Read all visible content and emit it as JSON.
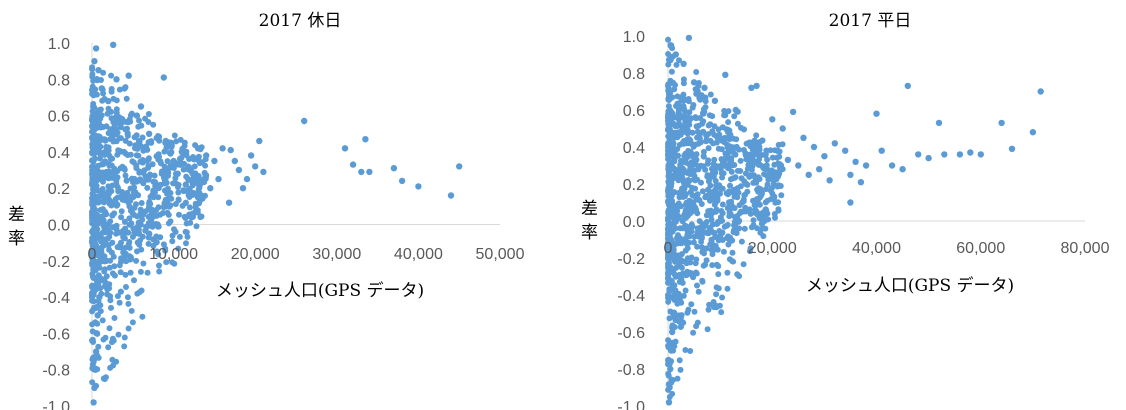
{
  "chart_data": [
    {
      "type": "scatter",
      "title": "2017 休日",
      "xlabel": "メッシュ人口(GPS データ)",
      "ylabel": "差率",
      "xlim": [
        0,
        50000
      ],
      "ylim": [
        -1.0,
        1.0
      ],
      "x_ticks": [
        "0",
        "10,000",
        "20,000",
        "30,000",
        "40,000",
        "50,000"
      ],
      "y_ticks": [
        "1.0",
        "0.8",
        "0.6",
        "0.4",
        "0.2",
        "0.0",
        "-0.2",
        "-0.4",
        "-0.6",
        "-0.8",
        "-1.0"
      ],
      "grid": false,
      "marker_color": "#5b9bd5",
      "points": [
        [
          200,
          -0.98
        ],
        [
          300,
          -0.9
        ],
        [
          400,
          -0.8
        ],
        [
          500,
          -0.7
        ],
        [
          600,
          -0.6
        ],
        [
          700,
          -0.5
        ],
        [
          900,
          -0.4
        ],
        [
          1100,
          -0.3
        ],
        [
          1300,
          -0.2
        ],
        [
          1600,
          -0.1
        ],
        [
          2000,
          0.0
        ],
        [
          2500,
          0.05
        ],
        [
          300,
          0.9
        ],
        [
          500,
          0.97
        ],
        [
          800,
          0.85
        ],
        [
          1200,
          0.75
        ],
        [
          2000,
          0.68
        ],
        [
          2600,
          0.99
        ],
        [
          3000,
          0.8
        ],
        [
          4000,
          0.75
        ],
        [
          4500,
          0.82
        ],
        [
          8800,
          0.81
        ],
        [
          6000,
          0.65
        ],
        [
          5500,
          0.6
        ],
        [
          3500,
          0.55
        ],
        [
          7000,
          0.5
        ],
        [
          9000,
          0.45
        ],
        [
          10000,
          0.35
        ],
        [
          11000,
          0.4
        ],
        [
          12000,
          0.3
        ],
        [
          13000,
          0.42
        ],
        [
          14000,
          0.38
        ],
        [
          15000,
          0.35
        ],
        [
          15500,
          0.25
        ],
        [
          16000,
          0.42
        ],
        [
          17000,
          0.41
        ],
        [
          17500,
          0.35
        ],
        [
          18000,
          0.3
        ],
        [
          19000,
          0.25
        ],
        [
          19500,
          0.38
        ],
        [
          20000,
          0.32
        ],
        [
          20500,
          0.46
        ],
        [
          21000,
          0.29
        ],
        [
          14500,
          0.2
        ],
        [
          13000,
          0.15
        ],
        [
          11500,
          0.22
        ],
        [
          16800,
          0.12
        ],
        [
          9000,
          0.1
        ],
        [
          8000,
          0.0
        ],
        [
          7000,
          -0.05
        ],
        [
          6000,
          0.05
        ],
        [
          10500,
          0.28
        ],
        [
          12500,
          0.36
        ],
        [
          18500,
          0.2
        ],
        [
          26000,
          0.57
        ],
        [
          31000,
          0.42
        ],
        [
          32000,
          0.33
        ],
        [
          33000,
          0.29
        ],
        [
          33500,
          0.47
        ],
        [
          34000,
          0.29
        ],
        [
          37000,
          0.31
        ],
        [
          38000,
          0.24
        ],
        [
          40000,
          0.21
        ],
        [
          44000,
          0.16
        ],
        [
          45000,
          0.32
        ]
      ]
    },
    {
      "type": "scatter",
      "title": "2017 平日",
      "xlabel": "メッシュ人口(GPS データ)",
      "ylabel": "差率",
      "xlim": [
        0,
        80000
      ],
      "ylim": [
        -1.0,
        1.0
      ],
      "x_ticks": [
        "0",
        "20,000",
        "40,000",
        "60,000",
        "80,000"
      ],
      "y_ticks": [
        "1.0",
        "0.8",
        "0.6",
        "0.4",
        "0.2",
        "0.0",
        "-0.2",
        "-0.4",
        "-0.6",
        "-0.8",
        "-1.0"
      ],
      "grid": false,
      "marker_color": "#5b9bd5",
      "points": [
        [
          200,
          -0.98
        ],
        [
          300,
          -0.9
        ],
        [
          450,
          -0.8
        ],
        [
          600,
          -0.7
        ],
        [
          800,
          -0.6
        ],
        [
          1000,
          -0.5
        ],
        [
          1200,
          -0.4
        ],
        [
          1500,
          -0.3
        ],
        [
          1800,
          -0.2
        ],
        [
          2200,
          -0.1
        ],
        [
          2800,
          0.0
        ],
        [
          3500,
          0.05
        ],
        [
          500,
          0.95
        ],
        [
          1500,
          0.9
        ],
        [
          4000,
          0.99
        ],
        [
          3000,
          0.85
        ],
        [
          5000,
          0.75
        ],
        [
          7000,
          0.72
        ],
        [
          11000,
          0.79
        ],
        [
          16000,
          0.72
        ],
        [
          17000,
          0.73
        ],
        [
          9000,
          0.65
        ],
        [
          13000,
          0.6
        ],
        [
          20000,
          0.55
        ],
        [
          24000,
          0.59
        ],
        [
          22000,
          0.5
        ],
        [
          26000,
          0.45
        ],
        [
          28000,
          0.4
        ],
        [
          30000,
          0.35
        ],
        [
          32000,
          0.42
        ],
        [
          34000,
          0.38
        ],
        [
          35000,
          0.25
        ],
        [
          36000,
          0.32
        ],
        [
          38000,
          0.3
        ],
        [
          40000,
          0.58
        ],
        [
          41000,
          0.38
        ],
        [
          43000,
          0.3
        ],
        [
          45000,
          0.28
        ],
        [
          46000,
          0.73
        ],
        [
          48000,
          0.36
        ],
        [
          50000,
          0.34
        ],
        [
          52000,
          0.53
        ],
        [
          53000,
          0.36
        ],
        [
          56000,
          0.36
        ],
        [
          58000,
          0.37
        ],
        [
          60000,
          0.36
        ],
        [
          64000,
          0.53
        ],
        [
          66000,
          0.39
        ],
        [
          70000,
          0.48
        ],
        [
          71500,
          0.7
        ],
        [
          35000,
          0.1
        ],
        [
          37000,
          0.21
        ],
        [
          25000,
          0.3
        ],
        [
          27000,
          0.25
        ],
        [
          15000,
          0.2
        ],
        [
          18000,
          0.15
        ],
        [
          12000,
          0.1
        ],
        [
          10000,
          0.0
        ],
        [
          14000,
          0.05
        ],
        [
          8000,
          -0.05
        ],
        [
          21000,
          0.38
        ],
        [
          19000,
          0.28
        ],
        [
          23000,
          0.33
        ],
        [
          29000,
          0.28
        ],
        [
          31000,
          0.22
        ]
      ]
    }
  ]
}
